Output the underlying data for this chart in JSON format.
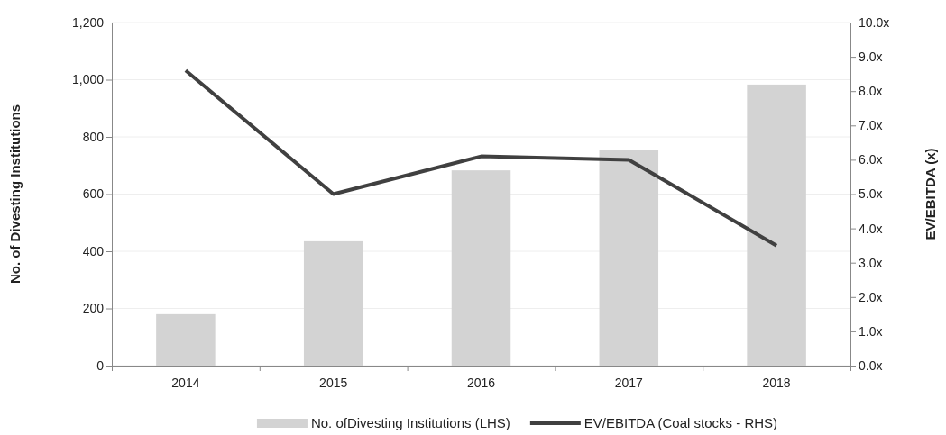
{
  "chart_data": {
    "type": "bar",
    "categories": [
      "2014",
      "2015",
      "2016",
      "2017",
      "2018"
    ],
    "ylabel": "No. of Divesting Institutions",
    "y2label": "EV/EBITDA  (x)",
    "series": [
      {
        "name": "No. ofDivesting Institutions (LHS)",
        "color": "#d3d3d3",
        "values": [
          180,
          435,
          683,
          753,
          983
        ]
      },
      {
        "name": "EV/EBITDA (Coal stocks - RHS)",
        "color": "#404040",
        "type": "line",
        "axis": "y2",
        "values": [
          8.6,
          5.0,
          6.1,
          6.0,
          3.5
        ]
      }
    ],
    "ylim": [
      0,
      1200
    ],
    "yticks": [
      0,
      200,
      400,
      600,
      800,
      {
        "value": 1000,
        "label": "1,000"
      },
      {
        "value": 1200,
        "label": "1,200"
      }
    ],
    "y2lim": [
      0,
      10
    ],
    "y2ticks": [
      {
        "value": 0,
        "label": "0.0x"
      },
      {
        "value": 1,
        "label": "1.0x"
      },
      {
        "value": 2,
        "label": "2.0x"
      },
      {
        "value": 3,
        "label": "3.0x"
      },
      {
        "value": 4,
        "label": "4.0x"
      },
      {
        "value": 5,
        "label": "5.0x"
      },
      {
        "value": 6,
        "label": "6.0x"
      },
      {
        "value": 7,
        "label": "7.0x"
      },
      {
        "value": 8,
        "label": "8.0x"
      },
      {
        "value": 9,
        "label": "9.0x"
      },
      {
        "value": 10,
        "label": "10.0x"
      }
    ],
    "grid": "y",
    "legend": "bottom",
    "marker": "none",
    "line_style": "solid"
  }
}
